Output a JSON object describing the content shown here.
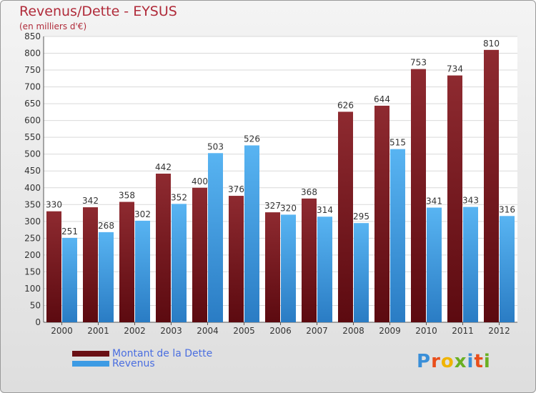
{
  "header": {
    "title": "Revenus/Dette - EYSUS",
    "subtitle": "(en milliers d'€)"
  },
  "colors": {
    "dette": "#7a1e24",
    "revenus": "#3d9be4",
    "title": "#b02b3a",
    "legend_text": "#4a6ee0"
  },
  "legend": [
    {
      "label": "Montant de la Dette",
      "color": "#6a0f14"
    },
    {
      "label": "Revenus",
      "color": "#3d9be4"
    }
  ],
  "logo": {
    "text": "Proxiti"
  },
  "chart_data": {
    "type": "bar",
    "title": "Revenus/Dette - EYSUS",
    "subtitle": "(en milliers d'€)",
    "categories": [
      "2000",
      "2001",
      "2002",
      "2003",
      "2004",
      "2005",
      "2006",
      "2007",
      "2008",
      "2009",
      "2010",
      "2011",
      "2012"
    ],
    "series": [
      {
        "name": "Montant de la Dette",
        "values": [
          330,
          342,
          358,
          442,
          400,
          376,
          327,
          368,
          626,
          644,
          753,
          734,
          810
        ]
      },
      {
        "name": "Revenus",
        "values": [
          251,
          268,
          302,
          352,
          503,
          526,
          320,
          314,
          295,
          515,
          341,
          343,
          316
        ]
      }
    ],
    "ylim": [
      0,
      850
    ],
    "ytick_step": 50,
    "grid": true,
    "legend_position": "bottom-left"
  }
}
